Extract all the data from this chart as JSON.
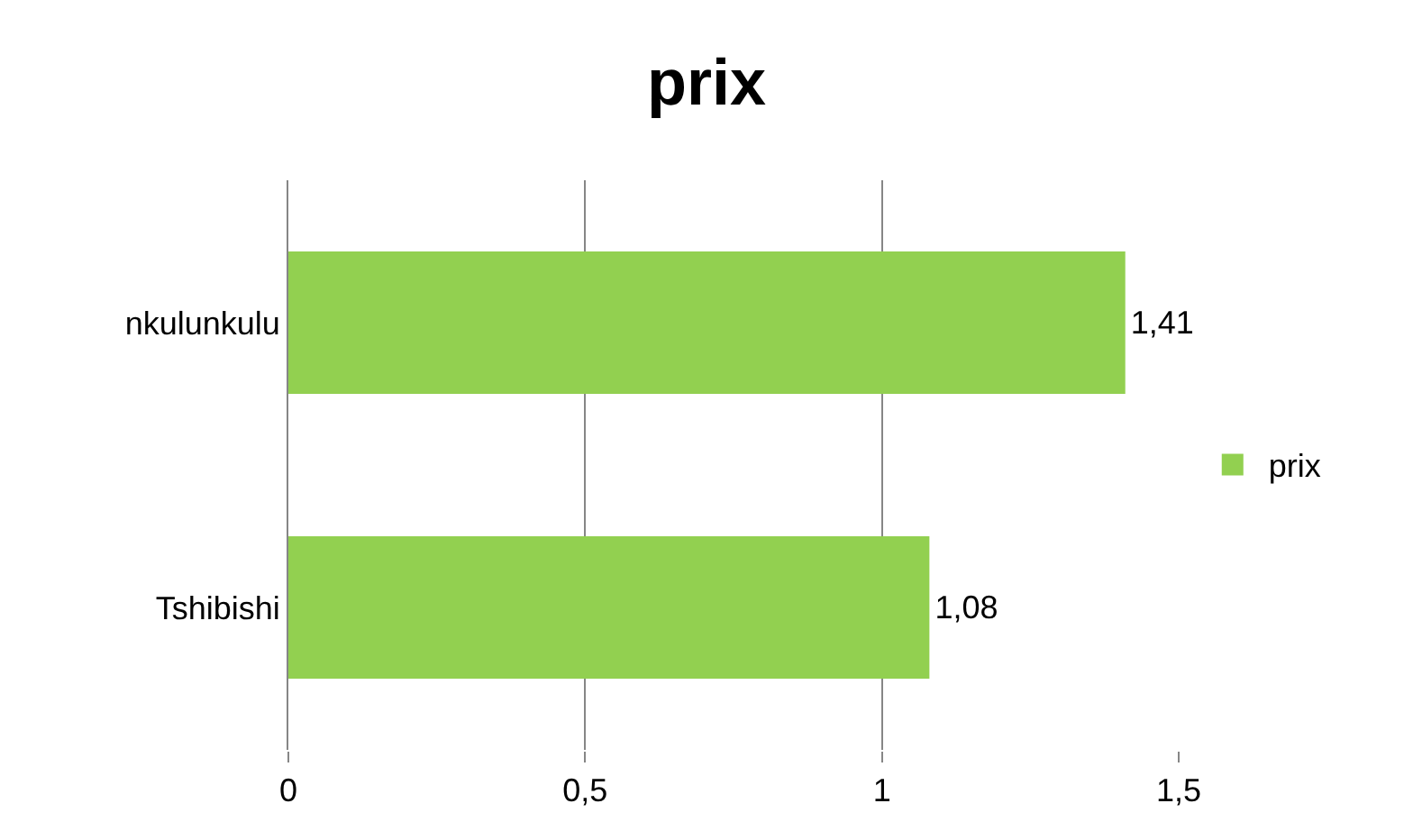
{
  "chart_data": {
    "type": "bar",
    "title": "prix",
    "orientation": "horizontal",
    "categories": [
      "nkulunkulu",
      "Tshibishi"
    ],
    "series": [
      {
        "name": "prix",
        "color": "#92d050",
        "values": [
          1.41,
          1.08
        ],
        "value_labels": [
          "1,41",
          "1,08"
        ]
      }
    ],
    "xlim": [
      0,
      1.5
    ],
    "xticks": [
      0,
      {
        "value": 0.5,
        "label": "0,5"
      },
      1,
      {
        "value": 1.5,
        "label": "1,5"
      }
    ],
    "grid": "x",
    "legend": "right"
  }
}
